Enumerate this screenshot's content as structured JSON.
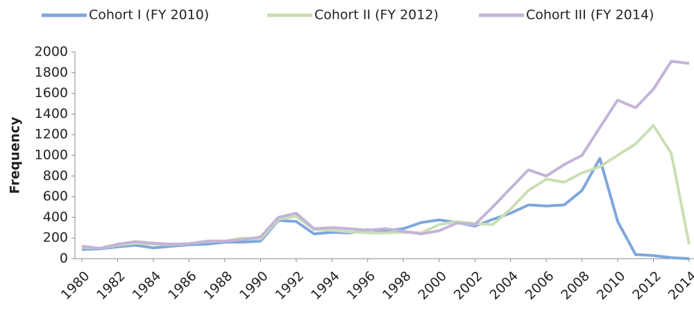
{
  "chart_data": {
    "type": "line",
    "y_label": "Frequency",
    "x": [
      1980,
      1981,
      1982,
      1983,
      1984,
      1985,
      1986,
      1987,
      1988,
      1989,
      1990,
      1991,
      1992,
      1993,
      1994,
      1995,
      1996,
      1997,
      1998,
      1999,
      2000,
      2001,
      2002,
      2003,
      2004,
      2005,
      2006,
      2007,
      2008,
      2009,
      2010,
      2011,
      2012,
      2013,
      2014
    ],
    "series": [
      {
        "name": "Cohort I (FY 2010)",
        "color": "#7ea6dc",
        "values": [
          90,
          95,
          115,
          130,
          105,
          120,
          135,
          140,
          160,
          160,
          170,
          370,
          360,
          240,
          255,
          250,
          280,
          270,
          290,
          350,
          375,
          350,
          315,
          380,
          440,
          520,
          510,
          520,
          660,
          970,
          360,
          40,
          30,
          10,
          0
        ]
      },
      {
        "name": "Cohort II (FY 2012)",
        "color": "#c9dfb4",
        "values": [
          110,
          100,
          130,
          150,
          140,
          135,
          145,
          165,
          170,
          200,
          190,
          380,
          410,
          280,
          275,
          260,
          250,
          250,
          255,
          250,
          330,
          360,
          340,
          330,
          480,
          660,
          770,
          740,
          830,
          890,
          1000,
          1110,
          1290,
          1020,
          140
        ]
      },
      {
        "name": "Cohort III (FY 2014)",
        "color": "#c3b3d8",
        "values": [
          120,
          100,
          140,
          165,
          150,
          140,
          145,
          170,
          170,
          185,
          210,
          400,
          440,
          290,
          300,
          290,
          275,
          290,
          265,
          240,
          270,
          345,
          330,
          500,
          680,
          860,
          800,
          910,
          1000,
          1270,
          1535,
          1460,
          1640,
          1910,
          1890
        ]
      }
    ],
    "xlim": [
      1980,
      2014
    ],
    "xticks": [
      1980,
      1982,
      1984,
      1986,
      1988,
      1990,
      1992,
      1994,
      1996,
      1998,
      2000,
      2002,
      2004,
      2006,
      2008,
      2010,
      2012,
      2014
    ],
    "ylim": [
      0,
      2000
    ],
    "yticks": [
      0,
      200,
      400,
      600,
      800,
      1000,
      1200,
      1400,
      1600,
      1800,
      2000
    ],
    "legend": "top"
  }
}
